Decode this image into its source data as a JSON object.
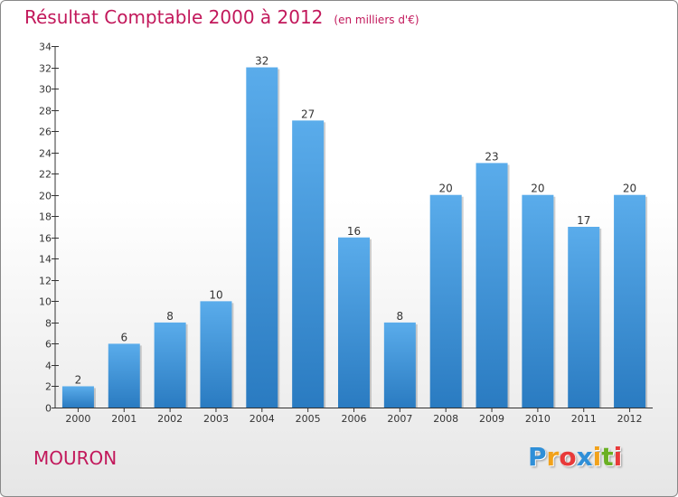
{
  "chart_data": {
    "type": "bar",
    "title": "Résultat Comptable 2000 à 2012",
    "unit_note": "(en milliers d'€)",
    "categories": [
      "2000",
      "2001",
      "2002",
      "2003",
      "2004",
      "2005",
      "2006",
      "2007",
      "2008",
      "2009",
      "2010",
      "2011",
      "2012"
    ],
    "values": [
      2,
      6,
      8,
      10,
      32,
      27,
      16,
      8,
      20,
      23,
      20,
      17,
      20
    ],
    "ylim": [
      0,
      34
    ],
    "yticks": [
      0,
      2,
      4,
      6,
      8,
      10,
      12,
      14,
      16,
      18,
      20,
      22,
      24,
      26,
      28,
      30,
      32,
      34
    ],
    "grid": false,
    "xlabel": "",
    "ylabel": ""
  },
  "commune": "MOURON",
  "logo": {
    "letters": [
      "P",
      "r",
      "o",
      "x",
      "i",
      "t",
      "i"
    ],
    "colors": [
      "#2f8fd8",
      "#f2a21b",
      "#e83a3a",
      "#2f8fd8",
      "#f2a21b",
      "#6ab023",
      "#e83a3a"
    ]
  },
  "colors": {
    "title": "#c2185b",
    "bar_light": "#5aaceb",
    "bar_dark": "#2a7bc1",
    "axis": "#333333"
  }
}
